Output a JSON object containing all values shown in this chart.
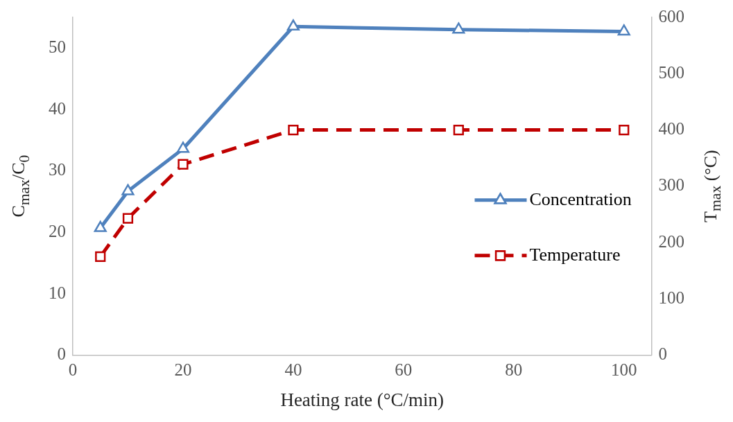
{
  "chart_data": {
    "type": "line",
    "xlabel": "Heating rate (°C/min)",
    "ylabel": "C$_{max}$/C$_{0}$",
    "y2label": "T$_{max}$ (°C)",
    "x": [
      5,
      10,
      20,
      40,
      70,
      100
    ],
    "series": [
      {
        "name": "Concentration",
        "color": "#4f81bd",
        "values": [
          20.7,
          26.7,
          33.6,
          53.5,
          53.0,
          52.7
        ],
        "marker": "triangle",
        "line_style": "solid"
      },
      {
        "name": "Temperature",
        "color": "#c00000",
        "values": [
          175,
          243,
          339,
          400,
          400,
          400
        ],
        "marker": "square",
        "line_style": "dashed",
        "axis": "y2"
      }
    ],
    "xlim": [
      0,
      105
    ],
    "xticks": [
      0,
      20,
      40,
      60,
      80,
      100
    ],
    "ylim": [
      0,
      55
    ],
    "yticks": [
      0,
      10,
      20,
      30,
      40,
      50
    ],
    "y2lim": [
      0,
      600
    ],
    "y2ticks": [
      0,
      100,
      200,
      300,
      400,
      500,
      600
    ],
    "grid": false,
    "legend": "right"
  }
}
